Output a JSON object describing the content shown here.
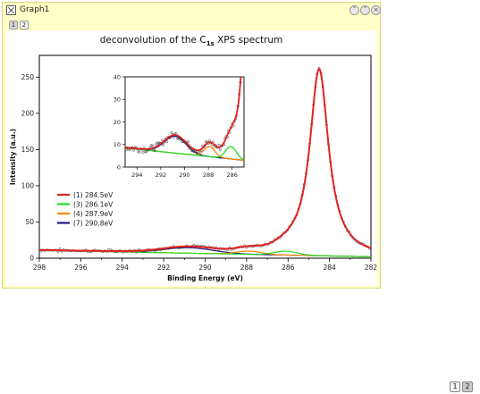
{
  "window": {
    "title": "Graph1",
    "page_tabs": [
      "1",
      "2"
    ],
    "buttons": [
      "˅",
      "˄",
      "×"
    ]
  },
  "bottom_tabs": [
    "1",
    "2"
  ],
  "chart_data": {
    "type": "line",
    "title": "deconvolution of the C",
    "title_subscript": "1s",
    "title_suffix": " XPS spectrum",
    "xlabel": "Binding Energy (eV)",
    "ylabel": "Intensity (a.u.)",
    "xlim": [
      298,
      282
    ],
    "ylim": [
      0,
      280
    ],
    "x_ticks": [
      "298",
      "296",
      "294",
      "292",
      "290",
      "288",
      "286",
      "284",
      "282"
    ],
    "y_ticks": [
      "0",
      "50",
      "100",
      "150",
      "200",
      "250"
    ],
    "legend_placement": "lower-left",
    "series": [
      {
        "name": "(1) 284.5eV",
        "color": "#e32222",
        "center": 284.5,
        "height": 258,
        "width": 0.55
      },
      {
        "name": "(3) 286.1eV",
        "color": "#22dd22",
        "center": 286.1,
        "height": 5.5,
        "width": 0.55
      },
      {
        "name": "(4) 287.9eV",
        "color": "#ff8800",
        "center": 287.9,
        "height": 4.5,
        "width": 0.6
      },
      {
        "name": "(7) 290.8eV",
        "color": "#1a1a88",
        "center": 290.8,
        "height": 7.5,
        "width": 1.2
      }
    ],
    "background": {
      "color": "#666666",
      "y_at_298": 11,
      "y_at_282": 2
    },
    "inset": {
      "xlim": [
        295,
        285
      ],
      "ylim": [
        0,
        40
      ],
      "x_ticks": [
        "294",
        "292",
        "290",
        "288",
        "286"
      ],
      "y_ticks": [
        "0",
        "10",
        "20",
        "30",
        "40"
      ]
    }
  }
}
